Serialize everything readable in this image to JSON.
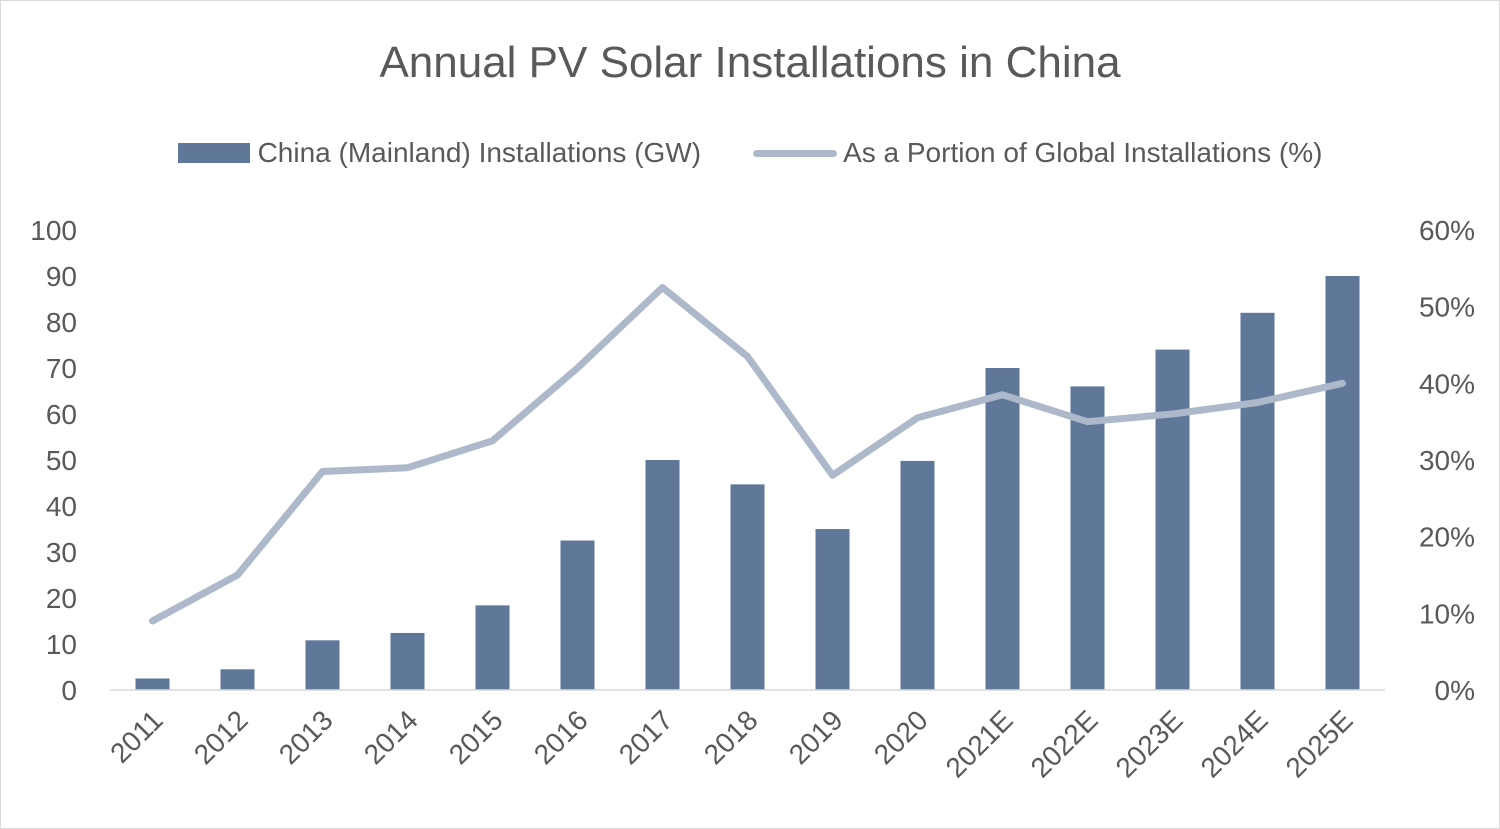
{
  "chart_data": {
    "type": "bar",
    "title": "Annual PV Solar Installations in China",
    "categories": [
      "2011",
      "2012",
      "2013",
      "2014",
      "2015",
      "2016",
      "2017",
      "2018",
      "2019",
      "2020",
      "2021E",
      "2022E",
      "2023E",
      "2024E",
      "2025E"
    ],
    "series": [
      {
        "name": "China (Mainland) Installations (GW)",
        "type": "bar",
        "axis": "left",
        "color": "#5f7799",
        "values": [
          2.5,
          4.5,
          10.8,
          12.4,
          18.4,
          32.5,
          50,
          44.7,
          35,
          49.8,
          70,
          66,
          74,
          82,
          90
        ]
      },
      {
        "name": "As a Portion of Global Installations (%)",
        "type": "line",
        "axis": "right",
        "color": "#adb9ca",
        "values": [
          9,
          15,
          28.5,
          29,
          32.5,
          42,
          52.5,
          43.5,
          28,
          35.5,
          38.5,
          35,
          36,
          37.5,
          40
        ]
      }
    ],
    "y_left": {
      "min": 0,
      "max": 100,
      "ticks": [
        "0",
        "10",
        "20",
        "30",
        "40",
        "50",
        "60",
        "70",
        "80",
        "90",
        "100"
      ]
    },
    "y_right": {
      "min": 0,
      "max": 60,
      "ticks": [
        "0%",
        "10%",
        "20%",
        "30%",
        "40%",
        "50%",
        "60%"
      ]
    },
    "grid": false,
    "legend_position": "top"
  }
}
